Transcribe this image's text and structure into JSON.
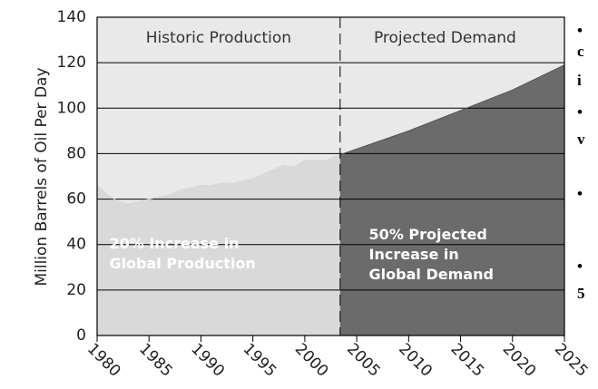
{
  "chart_data": {
    "type": "area",
    "y_label": "Million Barrels of Oil Per Day",
    "xlim": [
      1980,
      2025
    ],
    "xticks": [
      1980,
      1985,
      1990,
      1995,
      2000,
      2005,
      2010,
      2015,
      2020,
      2025
    ],
    "ylim": [
      0,
      140
    ],
    "yticks": [
      0,
      20,
      40,
      60,
      80,
      100,
      120,
      140
    ],
    "grid": true,
    "background": "#e9e9e9",
    "divider_x": 2003.4,
    "series": [
      {
        "name": "Historic Production",
        "color": "#d9d9d9",
        "x": [
          1980,
          1981,
          1982,
          1983,
          1984,
          1985,
          1986,
          1987,
          1988,
          1989,
          1990,
          1991,
          1992,
          1993,
          1994,
          1995,
          1996,
          1997,
          1998,
          1999,
          2000,
          2001,
          2002,
          2003.4
        ],
        "values": [
          66,
          62,
          59,
          58,
          59,
          60,
          61,
          62,
          64,
          65,
          66,
          66,
          67,
          67,
          68,
          69,
          71,
          73,
          75,
          74,
          77,
          77,
          77,
          79.5
        ]
      },
      {
        "name": "Projected Demand",
        "color": "#6b6b6b",
        "x": [
          2003.4,
          2010,
          2015,
          2020,
          2025
        ],
        "values": [
          79.5,
          90,
          99,
          108,
          119
        ]
      }
    ],
    "annotations": [
      {
        "lines": [
          "20% Increase in",
          "Global Production"
        ],
        "x": 1981,
        "y": 36,
        "color": "#ffffff"
      },
      {
        "lines": [
          "50% Projected",
          "Increase in",
          "Global Demand"
        ],
        "x": 2006,
        "y": 40,
        "color": "#ffffff"
      }
    ],
    "side_notes": [
      "•",
      "c",
      "i",
      "•",
      "v",
      "•",
      "•",
      "5"
    ]
  }
}
